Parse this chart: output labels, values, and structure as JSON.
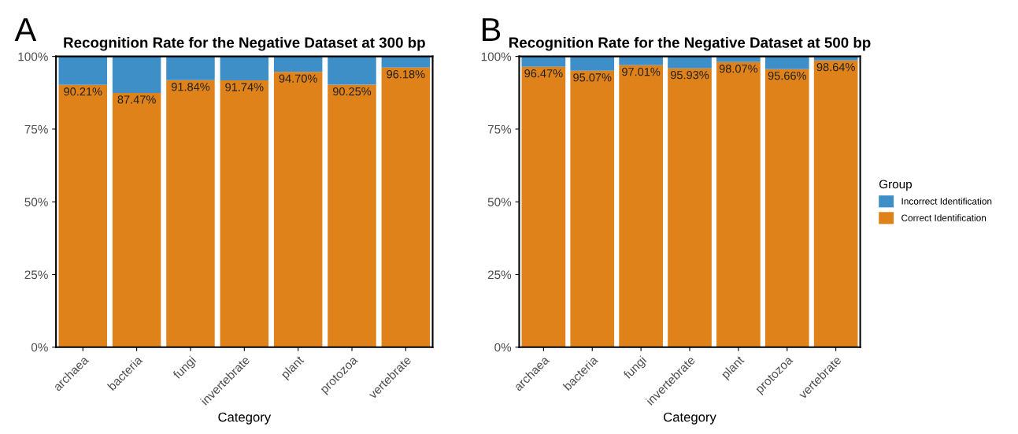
{
  "chart_data": [
    {
      "type": "bar",
      "title": "Recognition Rate for the Negative Dataset at 300 bp",
      "xlabel": "Category",
      "annotations": [
        "A"
      ],
      "stacked": true,
      "grid": false,
      "categories": [
        "archaea",
        "bacteria",
        "fungi",
        "invertebrate",
        "plant",
        "protozoa",
        "vertebrate"
      ],
      "ylim": [
        0,
        100
      ],
      "yticks": [
        {
          "value": 0,
          "label": "0%"
        },
        {
          "value": 25,
          "label": "25%"
        },
        {
          "value": 50,
          "label": "50%"
        },
        {
          "value": 75,
          "label": "75%"
        },
        {
          "value": 100,
          "label": "100%"
        }
      ],
      "series": [
        {
          "color": "#e0821a",
          "values": [
            90.21,
            87.47,
            91.84,
            91.74,
            94.7,
            90.25,
            96.18
          ],
          "value_labels": [
            "90.21%",
            "87.47%",
            "91.84%",
            "91.74%",
            "94.70%",
            "90.25%",
            "96.18%"
          ]
        },
        {
          "color": "#3e8fc7",
          "values": [
            9.8,
            12.5,
            8.2,
            8.3,
            5.3,
            9.8,
            3.8
          ]
        }
      ]
    },
    {
      "type": "bar",
      "title": "Recognition Rate for the Negative Dataset at 500 bp",
      "xlabel": "Category",
      "annotations": [
        "B"
      ],
      "stacked": true,
      "legend": "right",
      "legend_title": "Group",
      "grid": false,
      "categories": [
        "archaea",
        "bacteria",
        "fungi",
        "invertebrate",
        "plant",
        "protozoa",
        "vertebrate"
      ],
      "ylim": [
        0,
        100
      ],
      "yticks": [
        {
          "value": 0,
          "label": "0%"
        },
        {
          "value": 25,
          "label": "25%"
        },
        {
          "value": 50,
          "label": "50%"
        },
        {
          "value": 75,
          "label": "75%"
        },
        {
          "value": 100,
          "label": "100%"
        }
      ],
      "series": [
        {
          "name": "Correct Identification",
          "color": "#e0821a",
          "values": [
            96.47,
            95.07,
            97.01,
            95.93,
            98.07,
            95.66,
            98.64
          ],
          "value_labels": [
            "96.47%",
            "95.07%",
            "97.01%",
            "95.93%",
            "98.07%",
            "95.66%",
            "98.64%"
          ]
        },
        {
          "name": "Incorrect Identification",
          "color": "#3e8fc7",
          "values": [
            3.5,
            4.9,
            3.0,
            4.1,
            1.9,
            4.3,
            1.4
          ]
        }
      ]
    }
  ]
}
